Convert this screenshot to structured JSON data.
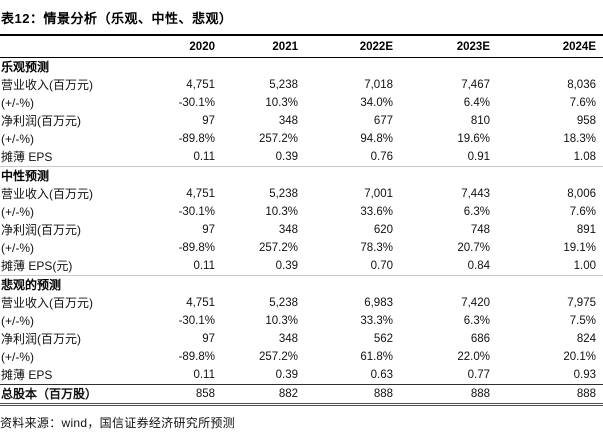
{
  "title": "表12：情景分析（乐观、中性、悲观）",
  "table": {
    "columns": [
      "2020",
      "2021",
      "2022E",
      "2023E",
      "2024E"
    ],
    "sections": [
      {
        "header": "乐观预测",
        "rows": [
          {
            "label": "营业收入(百万元)",
            "values": [
              "4,751",
              "5,238",
              "7,018",
              "7,467",
              "8,036"
            ]
          },
          {
            "label": "(+/-%)",
            "values": [
              "-30.1%",
              "10.3%",
              "34.0%",
              "6.4%",
              "7.6%"
            ]
          },
          {
            "label": "净利润(百万元)",
            "values": [
              "97",
              "348",
              "677",
              "810",
              "958"
            ]
          },
          {
            "label": "(+/-%)",
            "values": [
              "-89.8%",
              "257.2%",
              "94.8%",
              "19.6%",
              "18.3%"
            ]
          },
          {
            "label": "摊薄 EPS",
            "values": [
              "0.11",
              "0.39",
              "0.76",
              "0.91",
              "1.08"
            ]
          }
        ]
      },
      {
        "header": "中性预测",
        "rows": [
          {
            "label": "营业收入(百万元)",
            "values": [
              "4,751",
              "5,238",
              "7,001",
              "7,443",
              "8,006"
            ]
          },
          {
            "label": "(+/-%)",
            "values": [
              "-30.1%",
              "10.3%",
              "33.6%",
              "6.3%",
              "7.6%"
            ]
          },
          {
            "label": "净利润(百万元)",
            "values": [
              "97",
              "348",
              "620",
              "748",
              "891"
            ]
          },
          {
            "label": "(+/-%)",
            "values": [
              "-89.8%",
              "257.2%",
              "78.3%",
              "20.7%",
              "19.1%"
            ]
          },
          {
            "label": "摊薄 EPS(元)",
            "values": [
              "0.11",
              "0.39",
              "0.70",
              "0.84",
              "1.00"
            ]
          }
        ]
      },
      {
        "header": "悲观的预测",
        "rows": [
          {
            "label": "营业收入(百万元)",
            "values": [
              "4,751",
              "5,238",
              "6,983",
              "7,420",
              "7,975"
            ]
          },
          {
            "label": "(+/-%)",
            "values": [
              "-30.1%",
              "10.3%",
              "33.3%",
              "6.3%",
              "7.5%"
            ]
          },
          {
            "label": "净利润(百万元)",
            "values": [
              "97",
              "348",
              "562",
              "686",
              "824"
            ]
          },
          {
            "label": "(+/-%)",
            "values": [
              "-89.8%",
              "257.2%",
              "61.8%",
              "22.0%",
              "20.1%"
            ]
          },
          {
            "label": "摊薄 EPS",
            "values": [
              "0.11",
              "0.39",
              "0.63",
              "0.77",
              "0.93"
            ]
          }
        ]
      }
    ],
    "total_row": {
      "label": "总股本（百万股）",
      "values": [
        "858",
        "882",
        "888",
        "888",
        "888"
      ]
    }
  },
  "source": "资料来源：wind，国信证券经济研究所预测"
}
